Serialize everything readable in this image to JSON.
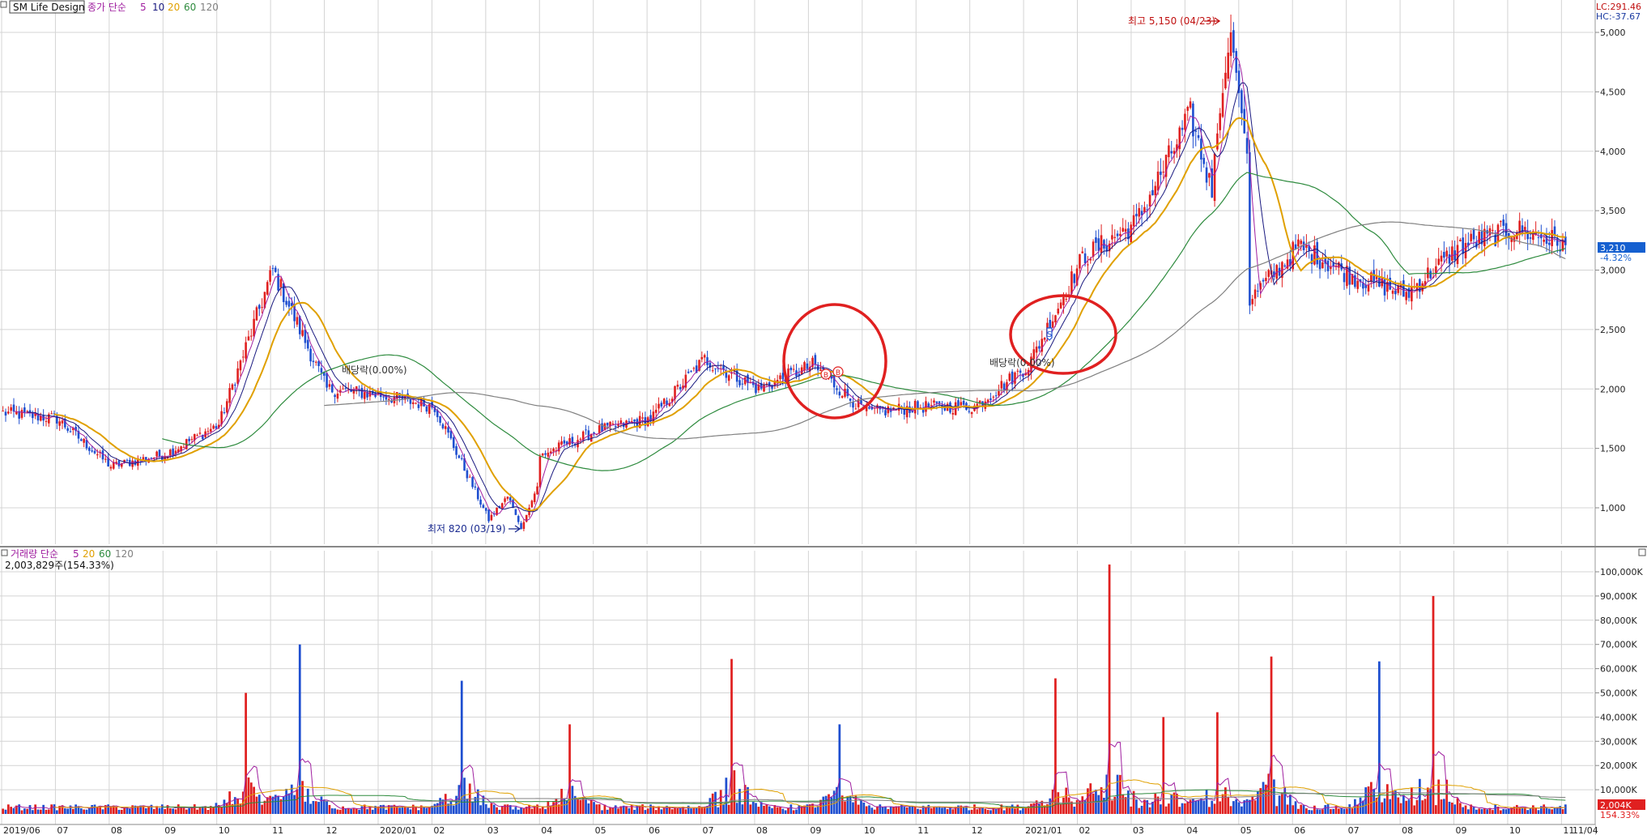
{
  "header": {
    "stock_name": "SM Life Design",
    "price_legend": {
      "prefix": "종가 단순",
      "periods": [
        "5",
        "10",
        "20",
        "60",
        "120"
      ]
    },
    "lc": "LC:291.46",
    "hc": "HC:-37.67"
  },
  "volume_header": {
    "prefix": "거래량 단순",
    "periods": [
      "5",
      "20",
      "60",
      "120"
    ],
    "current": "2,003,829주(154.33%)"
  },
  "colors": {
    "up": "#e02020",
    "down": "#1f4fd0",
    "ma5": "#a020a0",
    "ma10": "#1a1a80",
    "ma20": "#e0a000",
    "ma60": "#2e8b3e",
    "ma120": "#808080",
    "annotation_circle": "#e02020",
    "current_price_bg": "#1560d0"
  },
  "annotations": {
    "high": "최고 5,150 (04/23)",
    "low": "최저 820 (03/19)",
    "ex_div_1": "배당락(0.00%)",
    "ex_div_2": "배당락(0.00%)",
    "marker_s": "S",
    "marker_b": "B"
  },
  "current_price": {
    "value": "3,210",
    "change": "-4.32%"
  },
  "current_volume": {
    "value": "2,004K",
    "change": "154.33%"
  },
  "chart_data": [
    {
      "type": "candlestick",
      "title": "SM Life Design 종가 단순 5 10 20 60 120",
      "y_ticks": [
        "1,000",
        "1,500",
        "2,000",
        "2,500",
        "3,000",
        "3,500",
        "4,000",
        "4,500",
        "5,000"
      ],
      "ylim": [
        650,
        5300
      ],
      "x_ticks": [
        "2019/06",
        "07",
        "08",
        "09",
        "10",
        "11",
        "12",
        "2020/01",
        "02",
        "03",
        "04",
        "05",
        "06",
        "07",
        "08",
        "09",
        "10",
        "11",
        "12",
        "2021/01",
        "02",
        "03",
        "04",
        "05",
        "06",
        "07",
        "08",
        "09",
        "10",
        "11",
        "11/04"
      ],
      "series_close_monthly": {
        "x": [
          "2019/06",
          "2019/07",
          "2019/08",
          "2019/09",
          "2019/10",
          "2019/11",
          "2019/12",
          "2020/01",
          "2020/02",
          "2020/03",
          "2020/04",
          "2020/05",
          "2020/06",
          "2020/07",
          "2020/08",
          "2020/09",
          "2020/10",
          "2020/11",
          "2020/12",
          "2021/01",
          "2021/02",
          "2021/03",
          "2021/04",
          "2021/05",
          "2021/06",
          "2021/07",
          "2021/08",
          "2021/09",
          "2021/10",
          "2021/11"
        ],
        "y": [
          1800,
          1750,
          1350,
          1450,
          1700,
          3000,
          2000,
          1950,
          1850,
          900,
          1450,
          1650,
          1750,
          2250,
          2000,
          2200,
          1800,
          1850,
          1850,
          2200,
          3100,
          3400,
          4300,
          2700,
          3200,
          2950,
          2800,
          3200,
          3350,
          3210
        ]
      },
      "high": {
        "value": 5150,
        "date": "04/23"
      },
      "low": {
        "value": 820,
        "date": "03/19"
      },
      "moving_averages": [
        "5",
        "10",
        "20",
        "60",
        "120"
      ],
      "grid": true
    },
    {
      "type": "bar",
      "title": "거래량 단순 5 20 60 120",
      "y_ticks": [
        "10,000K",
        "20,000K",
        "30,000K",
        "40,000K",
        "50,000K",
        "60,000K",
        "70,000K",
        "80,000K",
        "90,000K",
        "100,000K"
      ],
      "ylim": [
        0,
        105000
      ],
      "units": "K",
      "spikes": [
        {
          "month": "2019/10",
          "value": 50000
        },
        {
          "month": "2019/11",
          "value": 70000
        },
        {
          "month": "2020/02",
          "value": 55000
        },
        {
          "month": "2020/04",
          "value": 37000
        },
        {
          "month": "2020/07",
          "value": 64000
        },
        {
          "month": "2020/09",
          "value": 37000
        },
        {
          "month": "2021/01",
          "value": 56000
        },
        {
          "month": "2021/02",
          "value": 103000
        },
        {
          "month": "2021/03",
          "value": 40000
        },
        {
          "month": "2021/04",
          "value": 42000
        },
        {
          "month": "2021/05",
          "value": 65000
        },
        {
          "month": "2021/07",
          "value": 63000
        },
        {
          "month": "2021/08",
          "value": 90000
        }
      ],
      "grid": true
    }
  ]
}
